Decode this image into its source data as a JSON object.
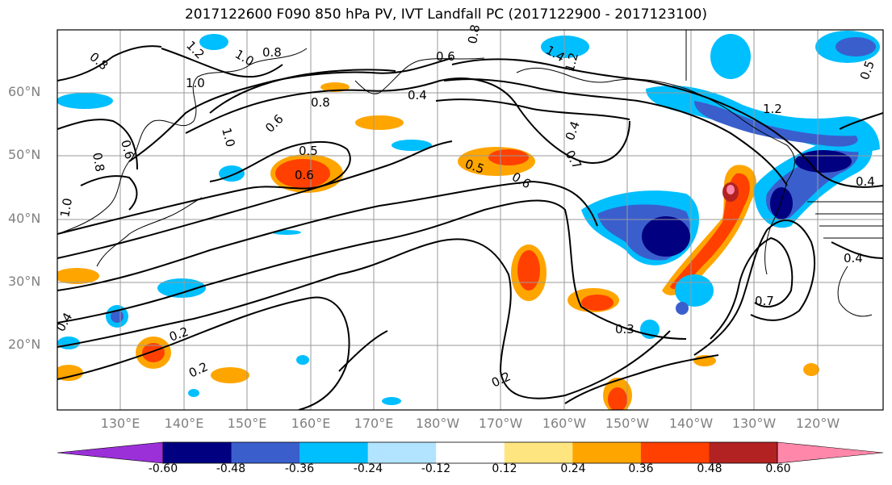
{
  "title": "2017122600 F090 850 hPa PV, IVT Landfall PC (2017122900 - 2017123100)",
  "lat_labels": [
    "60°N",
    "50°N",
    "40°N",
    "30°N",
    "20°N"
  ],
  "lon_labels": [
    "130°E",
    "140°E",
    "150°E",
    "160°E",
    "170°E",
    "180°W",
    "170°W",
    "160°W",
    "150°W",
    "140°W",
    "130°W",
    "120°W"
  ],
  "colorbar": {
    "ticks": [
      "-0.60",
      "-0.48",
      "-0.36",
      "-0.24",
      "-0.12",
      "0.12",
      "0.24",
      "0.36",
      "0.48",
      "0.60"
    ],
    "colors": [
      "#9b30d9",
      "#000080",
      "#3a5fcd",
      "#00bfff",
      "#b2e3ff",
      "#ffffff",
      "#ffe57f",
      "#ffa500",
      "#ff4000",
      "#b22222",
      "#ff88aa"
    ]
  },
  "contour_labels": [
    "1.2",
    "1.0",
    "0.8",
    "0.6",
    "0.4",
    "1.0",
    "0.8",
    "0.6",
    "0.5",
    "0.6",
    "0.4",
    "1.0",
    "0.6",
    "0.8",
    "0.5",
    "0.6",
    "0.4",
    "1.2",
    "1.4",
    "0.5",
    "0.4",
    "1.2",
    "0.8",
    "0.7",
    "0.3",
    "0.2",
    "0.2",
    "0.2",
    "0.4",
    "0.7",
    "1.0",
    "0.8"
  ]
}
